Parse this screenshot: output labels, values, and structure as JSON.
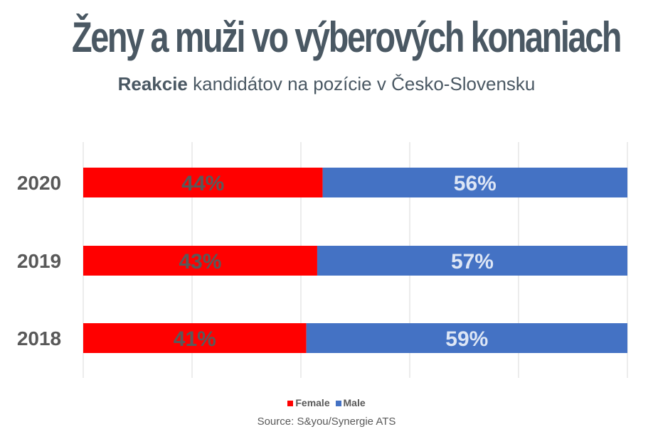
{
  "title": "Ženy a muži vo výberových konaniach",
  "subtitle": {
    "bold": "Reakcie",
    "rest": " kandidátov na pozície v Česko-Slovensku"
  },
  "source": "Source: S&you/Synergie ATS",
  "colors": {
    "female": "#ff0000",
    "male": "#4472c4",
    "female_label": "#595959",
    "male_label": "#dde6f5",
    "category_label": "#595959",
    "grid": "#d9d9d9"
  },
  "chart_data": {
    "type": "bar",
    "orientation": "horizontal",
    "stacked": true,
    "percent_stacked": true,
    "categories": [
      "2020",
      "2019",
      "2018"
    ],
    "series": [
      {
        "name": "Female",
        "values": [
          44,
          43,
          41
        ],
        "labels": [
          "44%",
          "43%",
          "41%"
        ]
      },
      {
        "name": "Male",
        "values": [
          56,
          57,
          59
        ],
        "labels": [
          "56%",
          "57%",
          "59%"
        ]
      }
    ],
    "xlim": [
      0,
      100
    ],
    "grid": true,
    "legend": "bottom"
  }
}
